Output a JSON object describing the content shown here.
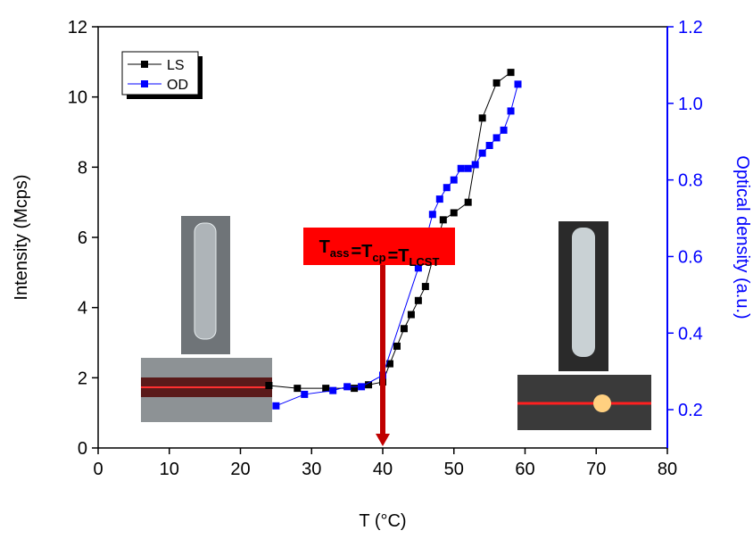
{
  "chart_data": {
    "type": "line",
    "xlabel": "T (°C)",
    "ylabel": "Intensity (Mcps)",
    "y2label": "Optical density (a.u.)",
    "annotation": {
      "symbols": [
        "T",
        "T",
        "T"
      ],
      "subscripts": [
        "ass",
        "cp",
        "LCST"
      ],
      "separator": "="
    },
    "xlim": [
      0,
      80
    ],
    "xticks": [
      0,
      10,
      20,
      30,
      40,
      50,
      60,
      70,
      80
    ],
    "ylim": [
      0,
      12
    ],
    "yticks": [
      0,
      2,
      4,
      6,
      8,
      10,
      12
    ],
    "y2lim": [
      0.1,
      1.2
    ],
    "y2ticks": [
      0.2,
      0.4,
      0.6,
      0.8,
      {
        "value": 1,
        "label": "1.0"
      },
      1.2
    ],
    "legend": "top-left",
    "series": [
      {
        "name": "LS",
        "color": "#000000",
        "x": [
          24,
          28,
          32,
          36,
          38,
          40,
          41,
          42,
          43,
          44,
          45,
          46,
          48.5,
          50,
          52,
          54,
          56,
          58
        ],
        "values": [
          1.78,
          1.7,
          1.7,
          1.7,
          1.8,
          1.88,
          2.4,
          2.9,
          3.4,
          3.8,
          4.2,
          4.6,
          6.5,
          6.7,
          7.0,
          9.4,
          10.4,
          10.7
        ]
      },
      {
        "name": "OD",
        "color": "#0000ff",
        "axis": "y2",
        "x": [
          25,
          29,
          33,
          35,
          37,
          40,
          45,
          47,
          48,
          49,
          50,
          51,
          52,
          53,
          54,
          55,
          56,
          57,
          58,
          59
        ],
        "values": [
          0.21,
          0.24,
          0.25,
          0.26,
          0.26,
          0.29,
          0.57,
          0.71,
          0.75,
          0.78,
          0.8,
          0.83,
          0.83,
          0.84,
          0.87,
          0.89,
          0.91,
          0.93,
          0.98,
          1.05
        ]
      }
    ]
  }
}
